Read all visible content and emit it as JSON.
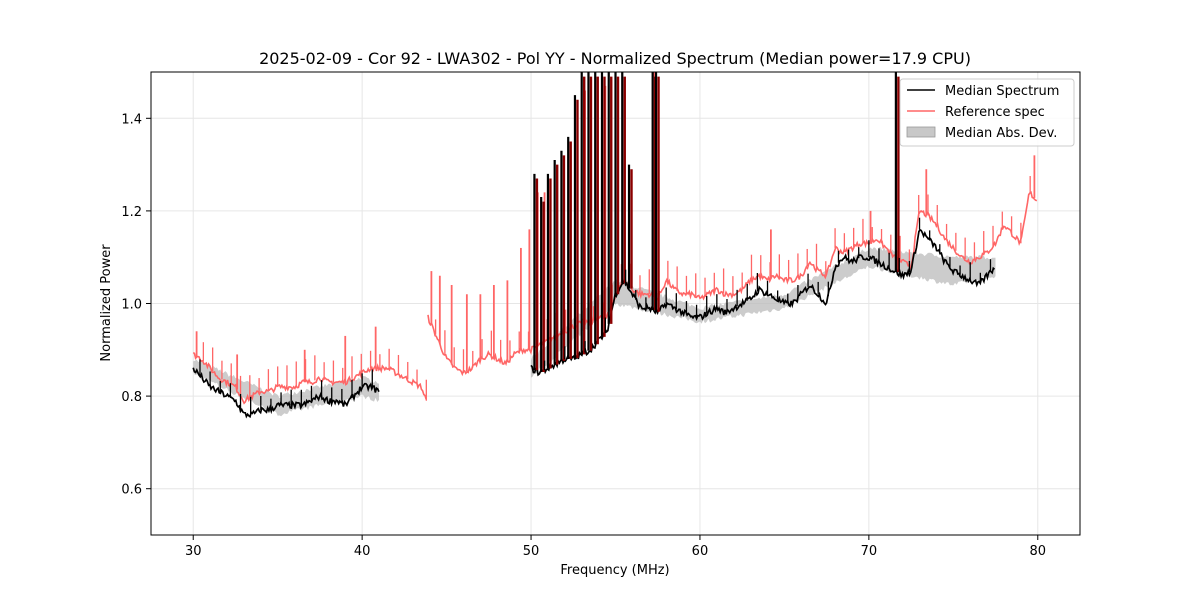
{
  "chart_data": {
    "type": "line",
    "title": "2025-02-09 - Cor 92 - LWA302 - Pol YY - Normalized Spectrum (Median power=17.9 CPU)",
    "xlabel": "Frequency (MHz)",
    "ylabel": "Normalized Power",
    "xlim": [
      27.5,
      82.5
    ],
    "ylim": [
      0.5,
      1.5
    ],
    "xticks": [
      30,
      40,
      50,
      60,
      70,
      80
    ],
    "yticks": [
      0.6,
      0.8,
      1.0,
      1.2,
      1.4
    ],
    "xtick_labels": [
      "30",
      "40",
      "50",
      "60",
      "70",
      "80"
    ],
    "ytick_labels": [
      "0.6",
      "0.8",
      "1.0",
      "1.2",
      "1.4"
    ],
    "grid": true,
    "legend_position": "top-right",
    "legend": [
      "Median Spectrum",
      "Reference spec",
      "Median Abs. Dev."
    ],
    "colors": {
      "median": "#000000",
      "reference": "#ff6666",
      "overlap": "#8b0000",
      "mad": "#bbbbbb"
    },
    "series": [
      {
        "name": "Median Spectrum",
        "x": [
          30.0,
          30.5,
          31.0,
          31.5,
          32.0,
          32.5,
          33.0,
          33.5,
          34.0,
          34.5,
          35.0,
          35.5,
          36.0,
          36.5,
          37.0,
          37.5,
          38.0,
          38.5,
          39.0,
          39.5,
          40.0,
          40.5,
          41.0,
          50.0,
          50.5,
          51.0,
          51.5,
          52.0,
          52.5,
          53.0,
          53.5,
          54.0,
          54.5,
          55.0,
          55.5,
          56.0,
          56.5,
          57.0,
          57.5,
          58.0,
          58.5,
          59.0,
          59.5,
          60.0,
          60.5,
          61.0,
          61.5,
          62.0,
          62.5,
          63.0,
          63.5,
          64.0,
          64.5,
          65.0,
          65.5,
          66.0,
          66.5,
          67.0,
          67.5,
          68.0,
          68.5,
          69.0,
          69.5,
          70.0,
          70.5,
          71.0,
          71.5,
          72.0,
          72.5,
          73.0,
          73.5,
          74.0,
          74.5,
          75.0,
          75.5,
          76.0,
          76.5,
          77.0,
          77.5
        ],
        "values": [
          0.86,
          0.84,
          0.82,
          0.81,
          0.8,
          0.79,
          0.76,
          0.76,
          0.77,
          0.77,
          0.78,
          0.78,
          0.78,
          0.78,
          0.79,
          0.8,
          0.79,
          0.79,
          0.78,
          0.8,
          0.82,
          0.82,
          0.81,
          0.86,
          0.85,
          0.86,
          0.87,
          0.88,
          0.88,
          0.89,
          0.9,
          0.92,
          0.94,
          1.02,
          1.05,
          1.02,
          0.99,
          0.99,
          0.98,
          1.0,
          0.99,
          0.98,
          0.97,
          0.97,
          0.98,
          0.99,
          0.98,
          0.99,
          1.0,
          1.01,
          1.03,
          1.02,
          1.01,
          1.0,
          1.0,
          1.02,
          1.04,
          1.02,
          1.0,
          1.08,
          1.1,
          1.09,
          1.1,
          1.1,
          1.09,
          1.08,
          1.07,
          1.06,
          1.07,
          1.16,
          1.14,
          1.12,
          1.09,
          1.07,
          1.06,
          1.05,
          1.04,
          1.06,
          1.08
        ],
        "spikes": [
          {
            "x": 50.2,
            "y": 1.28
          },
          {
            "x": 50.6,
            "y": 1.23
          },
          {
            "x": 51.0,
            "y": 1.28
          },
          {
            "x": 51.4,
            "y": 1.31
          },
          {
            "x": 51.8,
            "y": 1.33
          },
          {
            "x": 52.2,
            "y": 1.36
          },
          {
            "x": 52.6,
            "y": 1.45
          },
          {
            "x": 53.0,
            "y": 1.5
          },
          {
            "x": 53.4,
            "y": 1.5
          },
          {
            "x": 53.8,
            "y": 1.5
          },
          {
            "x": 54.2,
            "y": 1.5
          },
          {
            "x": 54.6,
            "y": 1.5
          },
          {
            "x": 55.0,
            "y": 1.5
          },
          {
            "x": 55.4,
            "y": 1.5
          },
          {
            "x": 55.8,
            "y": 1.3
          },
          {
            "x": 57.2,
            "y": 1.5
          },
          {
            "x": 57.4,
            "y": 1.5
          },
          {
            "x": 71.6,
            "y": 1.5
          }
        ]
      },
      {
        "name": "Reference spec",
        "x": [
          30.0,
          30.5,
          31.0,
          31.5,
          32.0,
          32.5,
          33.0,
          33.5,
          34.0,
          34.5,
          35.0,
          35.5,
          36.0,
          36.5,
          37.0,
          37.5,
          38.0,
          38.5,
          39.0,
          39.5,
          40.0,
          40.5,
          41.0,
          41.5,
          42.0,
          42.5,
          43.0,
          43.5,
          43.8,
          43.9,
          44.5,
          45.0,
          45.5,
          46.0,
          46.5,
          47.0,
          47.5,
          48.0,
          48.5,
          49.0,
          49.5,
          50.0,
          50.5,
          51.0,
          51.5,
          52.0,
          52.5,
          53.0,
          53.5,
          54.0,
          54.5,
          55.0,
          55.5,
          56.0,
          56.5,
          57.0,
          57.5,
          58.0,
          58.5,
          59.0,
          59.5,
          60.0,
          60.5,
          61.0,
          61.5,
          62.0,
          62.5,
          63.0,
          63.5,
          64.0,
          64.5,
          65.0,
          65.5,
          66.0,
          66.5,
          67.0,
          67.5,
          68.0,
          68.5,
          69.0,
          69.5,
          70.0,
          70.5,
          71.0,
          71.5,
          72.0,
          72.5,
          73.0,
          73.5,
          74.0,
          74.5,
          75.0,
          75.5,
          76.0,
          76.5,
          77.0,
          77.5,
          78.0,
          78.5,
          79.0,
          79.5,
          80.0
        ],
        "values": [
          0.89,
          0.88,
          0.86,
          0.84,
          0.83,
          0.82,
          0.79,
          0.8,
          0.81,
          0.81,
          0.82,
          0.82,
          0.82,
          0.83,
          0.83,
          0.84,
          0.83,
          0.83,
          0.83,
          0.84,
          0.85,
          0.86,
          0.86,
          0.86,
          0.85,
          0.84,
          0.83,
          0.82,
          0.79,
          0.97,
          0.92,
          0.88,
          0.86,
          0.85,
          0.86,
          0.88,
          0.89,
          0.88,
          0.87,
          0.89,
          0.9,
          0.9,
          0.91,
          0.92,
          0.93,
          0.94,
          0.95,
          0.96,
          0.96,
          0.97,
          0.97,
          1.02,
          1.05,
          1.03,
          1.02,
          1.02,
          1.01,
          1.05,
          1.03,
          1.02,
          1.02,
          1.01,
          1.02,
          1.03,
          1.02,
          1.02,
          1.03,
          1.05,
          1.06,
          1.05,
          1.06,
          1.05,
          1.05,
          1.06,
          1.09,
          1.07,
          1.06,
          1.12,
          1.11,
          1.12,
          1.13,
          1.13,
          1.14,
          1.12,
          1.1,
          1.09,
          1.08,
          1.2,
          1.19,
          1.17,
          1.14,
          1.12,
          1.1,
          1.09,
          1.1,
          1.11,
          1.13,
          1.17,
          1.15,
          1.13,
          1.24,
          1.22
        ],
        "spikes": [
          {
            "x": 30.2,
            "y": 0.94
          },
          {
            "x": 32.6,
            "y": 0.89
          },
          {
            "x": 36.6,
            "y": 0.9
          },
          {
            "x": 39.0,
            "y": 0.93
          },
          {
            "x": 40.8,
            "y": 0.95
          },
          {
            "x": 44.1,
            "y": 1.07
          },
          {
            "x": 44.6,
            "y": 1.06
          },
          {
            "x": 45.3,
            "y": 1.04
          },
          {
            "x": 46.2,
            "y": 1.02
          },
          {
            "x": 47.0,
            "y": 1.02
          },
          {
            "x": 47.8,
            "y": 1.04
          },
          {
            "x": 48.6,
            "y": 1.05
          },
          {
            "x": 49.4,
            "y": 1.12
          },
          {
            "x": 49.9,
            "y": 1.16
          },
          {
            "x": 50.4,
            "y": 1.24
          },
          {
            "x": 50.8,
            "y": 1.24
          },
          {
            "x": 53.2,
            "y": 1.46
          },
          {
            "x": 54.4,
            "y": 1.47
          },
          {
            "x": 57.3,
            "y": 1.5
          },
          {
            "x": 64.2,
            "y": 1.16
          },
          {
            "x": 70.1,
            "y": 1.2
          },
          {
            "x": 73.4,
            "y": 1.29
          },
          {
            "x": 79.8,
            "y": 1.32
          }
        ]
      },
      {
        "name": "Median Abs. Dev.",
        "x": [
          30.0,
          35.0,
          40.0,
          41.0,
          50.0,
          55.0,
          60.0,
          65.0,
          70.0,
          75.0,
          77.5
        ],
        "lower": [
          0.85,
          0.76,
          0.8,
          0.79,
          0.84,
          1.0,
          0.96,
          0.99,
          1.08,
          1.04,
          1.06
        ],
        "upper": [
          0.88,
          0.8,
          0.84,
          0.83,
          0.88,
          1.05,
          0.99,
          1.02,
          1.12,
          1.1,
          1.1
        ]
      }
    ]
  }
}
